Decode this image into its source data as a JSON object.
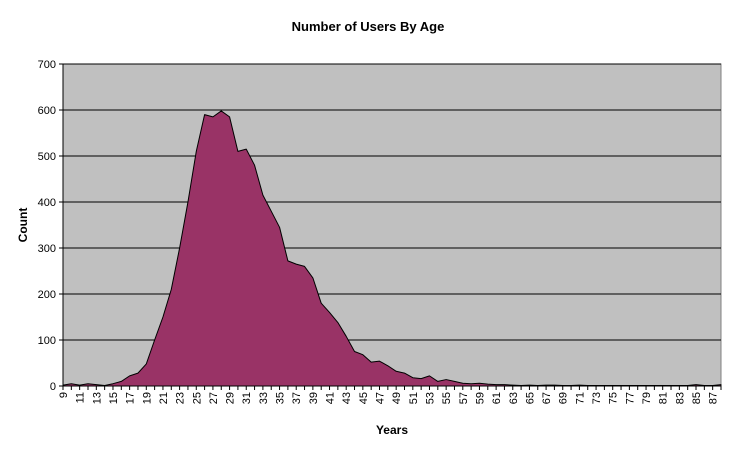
{
  "chart_data": {
    "type": "area",
    "title": "Number of Users By Age",
    "xlabel": "Years",
    "ylabel": "Count",
    "xlim": [
      9,
      88
    ],
    "ylim": [
      0,
      700
    ],
    "y_ticks": [
      0,
      100,
      200,
      300,
      400,
      500,
      600,
      700
    ],
    "x_tick_labels": [
      "9",
      "11",
      "13",
      "15",
      "17",
      "19",
      "21",
      "23",
      "25",
      "27",
      "29",
      "31",
      "33",
      "35",
      "37",
      "39",
      "41",
      "43",
      "45",
      "47",
      "49",
      "51",
      "53",
      "55",
      "57",
      "59",
      "61",
      "63",
      "65",
      "67",
      "69",
      "71",
      "73",
      "75",
      "77",
      "79",
      "81",
      "83",
      "85",
      "87"
    ],
    "grid": "horizontal",
    "legend": "none",
    "colors": {
      "area_fill": "#993366",
      "area_stroke": "#000000",
      "plot_background": "#c0c0c0",
      "gridline": "#000000"
    },
    "series": [
      {
        "x": [
          9,
          10,
          11,
          12,
          13,
          14,
          15,
          16,
          17,
          18,
          19,
          20,
          21,
          22,
          23,
          24,
          25,
          26,
          27,
          28,
          29,
          30,
          31,
          32,
          33,
          34,
          35,
          36,
          37,
          38,
          39,
          40,
          41,
          42,
          43,
          44,
          45,
          46,
          47,
          48,
          49,
          50,
          51,
          52,
          53,
          54,
          55,
          56,
          57,
          58,
          59,
          60,
          61,
          62,
          63,
          64,
          65,
          66,
          67,
          68,
          69,
          70,
          71,
          72,
          73,
          74,
          75,
          76,
          77,
          78,
          79,
          80,
          81,
          82,
          83,
          84,
          85,
          86,
          87,
          88
        ],
        "values": [
          2,
          5,
          2,
          5,
          3,
          1,
          5,
          10,
          22,
          28,
          48,
          100,
          150,
          210,
          300,
          400,
          510,
          590,
          585,
          598,
          585,
          510,
          515,
          480,
          415,
          380,
          345,
          272,
          265,
          260,
          235,
          180,
          160,
          138,
          108,
          75,
          68,
          52,
          54,
          44,
          32,
          28,
          18,
          16,
          22,
          10,
          14,
          10,
          6,
          5,
          6,
          4,
          3,
          3,
          2,
          1,
          2,
          1,
          2,
          2,
          1,
          1,
          2,
          1,
          1,
          1,
          1,
          1,
          1,
          1,
          1,
          1,
          1,
          1,
          1,
          1,
          3,
          1,
          1,
          3
        ]
      }
    ]
  }
}
